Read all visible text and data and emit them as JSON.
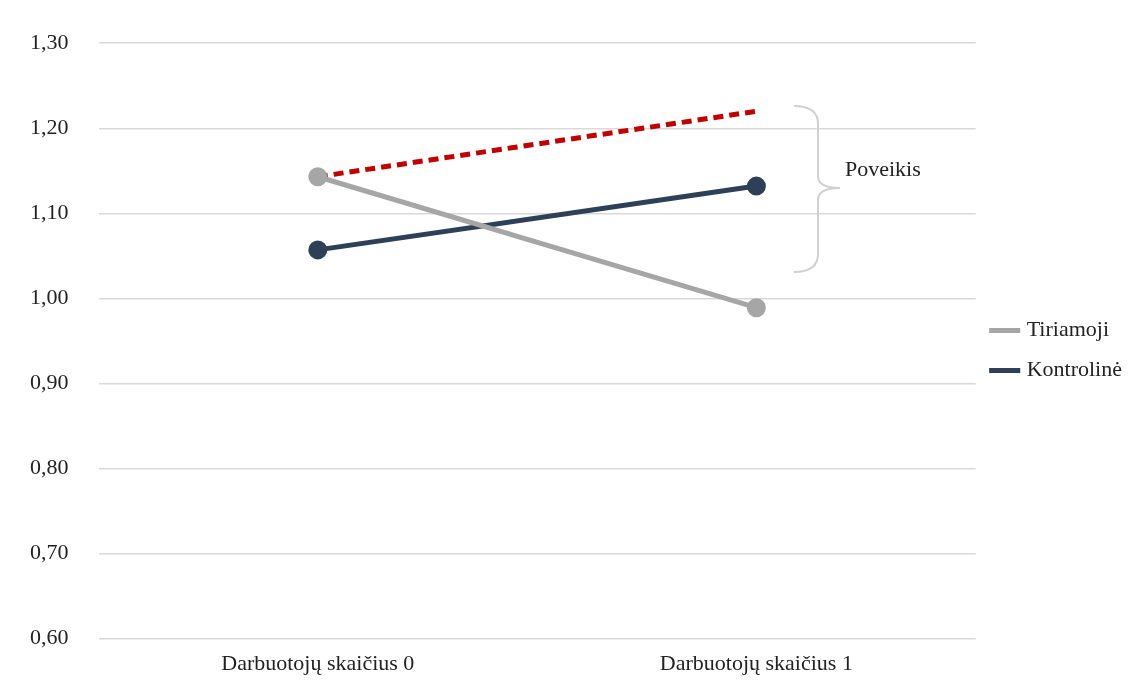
{
  "chart_data": {
    "type": "line",
    "categories": [
      "Darbuotojų skaičius 0",
      "Darbuotojų skaičius 1"
    ],
    "series": [
      {
        "name": "Tiriamoji",
        "color": "#a6a6a6",
        "values": [
          1.143,
          0.989
        ]
      },
      {
        "name": "Kontrolinė",
        "color": "#2e3f58",
        "values": [
          1.057,
          1.132
        ]
      },
      {
        "color": "#c00000",
        "values": [
          1.143,
          1.22
        ],
        "line_style": "dashed",
        "marker": "none"
      }
    ],
    "ylim": [
      0.6,
      1.3
    ],
    "yticks": [
      {
        "value": 0.6,
        "label": "0,60"
      },
      {
        "value": 0.7,
        "label": "0,70"
      },
      {
        "value": 0.8,
        "label": "0,80"
      },
      {
        "value": 0.9,
        "label": "0,90"
      },
      {
        "value": 1.0,
        "label": "1,00"
      },
      {
        "value": 1.1,
        "label": "1,10"
      },
      {
        "value": 1.2,
        "label": "1,20"
      },
      {
        "value": 1.3,
        "label": "1,30"
      }
    ],
    "grid": "y",
    "legend": "right",
    "marker": "circle",
    "line_style": "solid",
    "annotations": [
      "Poveikis"
    ]
  }
}
